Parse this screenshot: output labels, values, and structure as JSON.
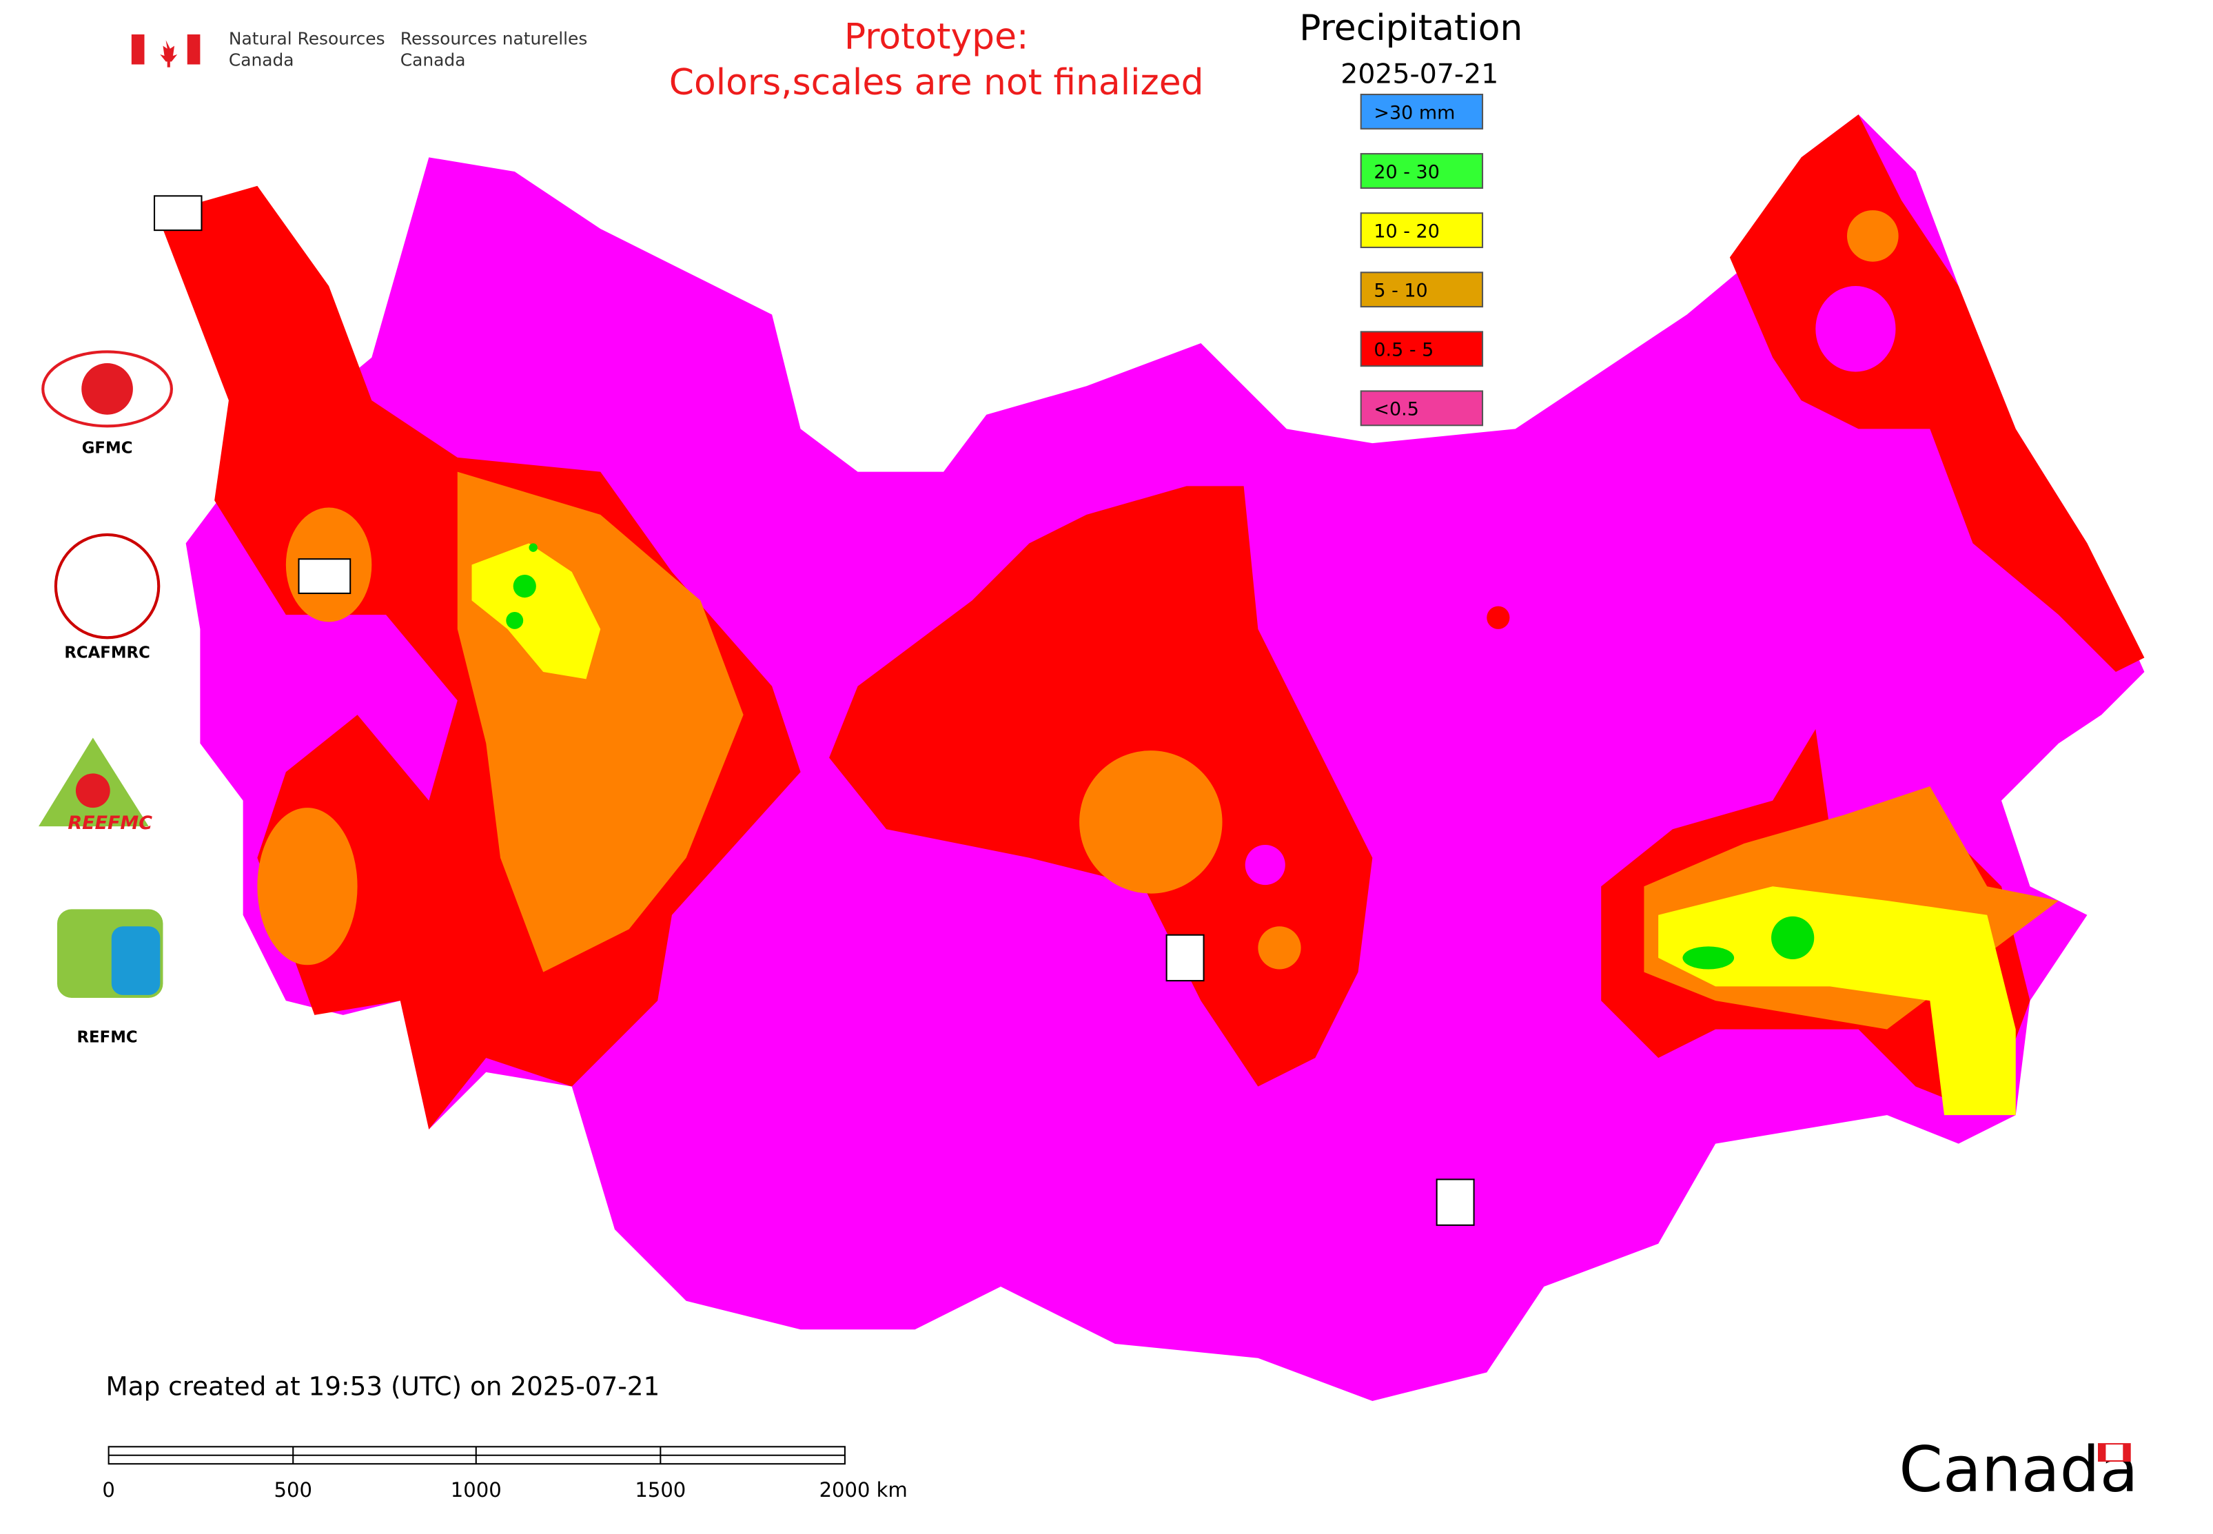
{
  "header": {
    "department_en": [
      "Natural Resources",
      "Canada"
    ],
    "department_fr": [
      "Ressources naturelles",
      "Canada"
    ],
    "notice": [
      "Prototype:",
      "Colors,scales are not finalized"
    ]
  },
  "legend": {
    "title": "Precipitation",
    "date": "2025-07-21",
    "items": [
      {
        "label": ">30 mm",
        "color": "#3399ff"
      },
      {
        "label": "20 - 30",
        "color": "#33ff33"
      },
      {
        "label": "10 - 20",
        "color": "#ffff00"
      },
      {
        "label": "5 - 10",
        "color": "#e0a000"
      },
      {
        "label": "0.5 - 5",
        "color": "#ff0000"
      },
      {
        "label": "<0.5",
        "color": "#f03c9c"
      }
    ]
  },
  "logos": [
    "GFMC",
    "RCAFMRC",
    "REEFMC",
    "REFMC"
  ],
  "footer": {
    "created": "Map created at 19:53 (UTC) on 2025-07-21",
    "scale_labels": [
      "0",
      "500",
      "1000",
      "1500",
      "2000 km"
    ],
    "wordmark": "Canada"
  }
}
